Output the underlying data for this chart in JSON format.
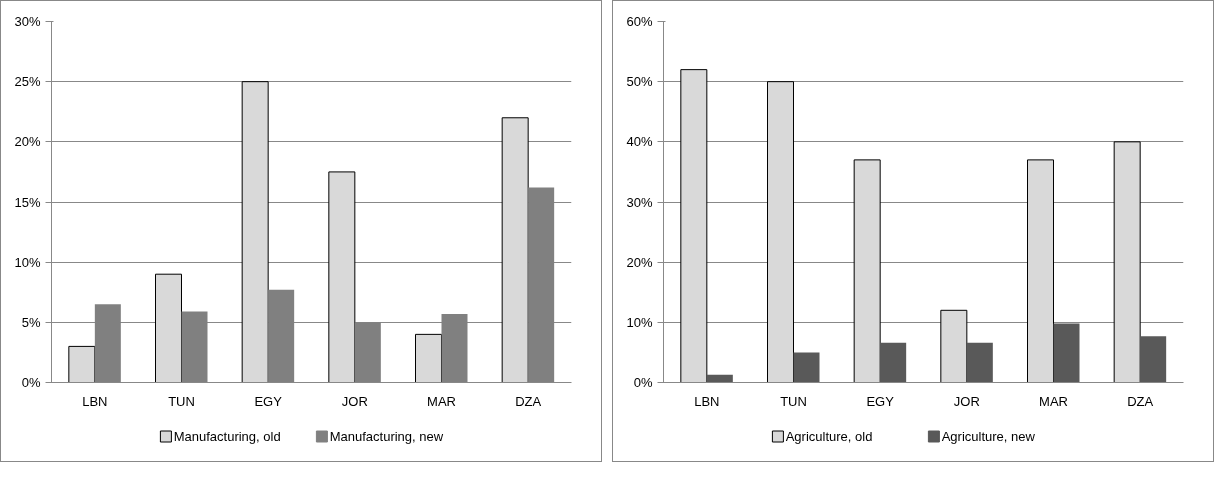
{
  "chart_data": [
    {
      "type": "bar",
      "categories": [
        "LBN",
        "TUN",
        "EGY",
        "JOR",
        "MAR",
        "DZA"
      ],
      "ylim": [
        0,
        30
      ],
      "yticks": [
        {
          "value": 0,
          "label": "0%"
        },
        {
          "value": 5,
          "label": "5%"
        },
        {
          "value": 10,
          "label": "10%"
        },
        {
          "value": 15,
          "label": "15%"
        },
        {
          "value": 20,
          "label": "20%"
        },
        {
          "value": 25,
          "label": "25%"
        },
        {
          "value": 30,
          "label": "30%"
        }
      ],
      "grid": "y",
      "legend": "bottom",
      "series": [
        {
          "name": "Manufacturing, old",
          "color": "#d9d9d9",
          "values": [
            3,
            9,
            25,
            17.5,
            4,
            22
          ]
        },
        {
          "name": "Manufacturing, new",
          "color": "#808080",
          "values": [
            6.5,
            5.9,
            7.7,
            5,
            5.7,
            16.2
          ]
        }
      ]
    },
    {
      "type": "bar",
      "categories": [
        "LBN",
        "TUN",
        "EGY",
        "JOR",
        "MAR",
        "DZA"
      ],
      "ylim": [
        0,
        60
      ],
      "yticks": [
        {
          "value": 0,
          "label": "0%"
        },
        {
          "value": 10,
          "label": "10%"
        },
        {
          "value": 20,
          "label": "20%"
        },
        {
          "value": 30,
          "label": "30%"
        },
        {
          "value": 40,
          "label": "40%"
        },
        {
          "value": 50,
          "label": "50%"
        },
        {
          "value": 60,
          "label": "60%"
        }
      ],
      "grid": "y",
      "legend": "bottom",
      "series": [
        {
          "name": "Agriculture, old",
          "color": "#d9d9d9",
          "values": [
            52,
            50,
            37,
            12,
            37,
            40
          ]
        },
        {
          "name": "Agriculture, new",
          "color": "#595959",
          "values": [
            1.3,
            5,
            6.6,
            6.6,
            9.8,
            7.7
          ]
        }
      ]
    }
  ]
}
